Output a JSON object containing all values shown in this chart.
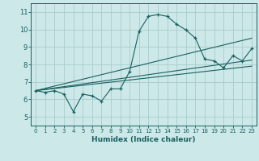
{
  "xlabel": "Humidex (Indice chaleur)",
  "bg_color": "#cce8e8",
  "grid_color": "#aacccc",
  "line_color": "#1a6060",
  "xlim": [
    -0.5,
    23.5
  ],
  "ylim": [
    4.5,
    11.5
  ],
  "xticks": [
    0,
    1,
    2,
    3,
    4,
    5,
    6,
    7,
    8,
    9,
    10,
    11,
    12,
    13,
    14,
    15,
    16,
    17,
    18,
    19,
    20,
    21,
    22,
    23
  ],
  "yticks": [
    5,
    6,
    7,
    8,
    9,
    10,
    11
  ],
  "main_series": {
    "x": [
      0,
      1,
      2,
      3,
      4,
      5,
      6,
      7,
      8,
      9,
      10,
      11,
      12,
      13,
      14,
      15,
      16,
      17,
      18,
      19,
      20,
      21,
      22,
      23
    ],
    "y": [
      6.5,
      6.4,
      6.5,
      6.3,
      5.3,
      6.3,
      6.2,
      5.9,
      6.6,
      6.6,
      7.6,
      9.9,
      10.75,
      10.85,
      10.75,
      10.3,
      9.97,
      9.5,
      8.3,
      8.2,
      7.8,
      8.5,
      8.2,
      8.9
    ]
  },
  "trend_lines": [
    {
      "x": [
        0,
        23
      ],
      "y": [
        6.5,
        9.5
      ]
    },
    {
      "x": [
        0,
        23
      ],
      "y": [
        6.5,
        8.25
      ]
    },
    {
      "x": [
        0,
        23
      ],
      "y": [
        6.5,
        7.9
      ]
    }
  ]
}
